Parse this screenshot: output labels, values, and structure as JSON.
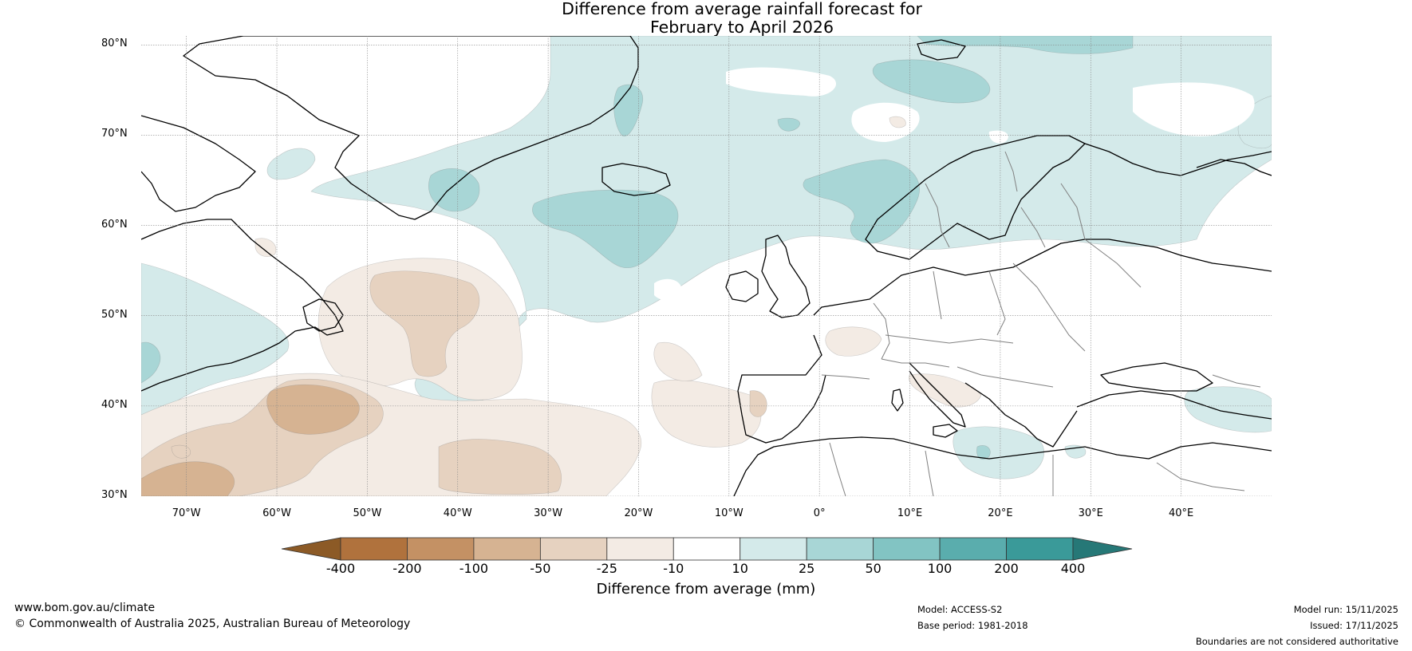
{
  "title": {
    "line1": "Difference from average rainfall forecast for",
    "line2": "February to April 2026"
  },
  "map": {
    "lon_min": -75,
    "lon_max": 50,
    "lat_min": 30,
    "lat_max": 81,
    "lat_ticks": [
      {
        "value": 80,
        "label": "80°N"
      },
      {
        "value": 70,
        "label": "70°N"
      },
      {
        "value": 60,
        "label": "60°N"
      },
      {
        "value": 50,
        "label": "50°N"
      },
      {
        "value": 40,
        "label": "40°N"
      },
      {
        "value": 30,
        "label": "30°N"
      }
    ],
    "lon_ticks": [
      {
        "value": -70,
        "label": "70°W"
      },
      {
        "value": -60,
        "label": "60°W"
      },
      {
        "value": -50,
        "label": "50°W"
      },
      {
        "value": -40,
        "label": "40°W"
      },
      {
        "value": -30,
        "label": "30°W"
      },
      {
        "value": -20,
        "label": "20°W"
      },
      {
        "value": -10,
        "label": "10°W"
      },
      {
        "value": 0,
        "label": "0°"
      },
      {
        "value": 10,
        "label": "10°E"
      },
      {
        "value": 20,
        "label": "20°E"
      },
      {
        "value": 30,
        "label": "30°E"
      },
      {
        "value": 40,
        "label": "40°E"
      }
    ]
  },
  "colorbar": {
    "title": "Difference from average (mm)",
    "labels": [
      "-400",
      "-200",
      "-100",
      "-50",
      "-25",
      "-10",
      "10",
      "25",
      "50",
      "100",
      "200",
      "400"
    ],
    "colors": {
      "extend_low": "#8c5a26",
      "bins": [
        "#b0723d",
        "#c49164",
        "#d6b392",
        "#e6d2c0",
        "#f3ebe4",
        "#ffffff",
        "#d4eaea",
        "#a8d6d6",
        "#82c4c3",
        "#5aadad",
        "#3a9a99"
      ],
      "extend_high": "#267877"
    }
  },
  "palette": {
    "brown_1": "#f3ebe4",
    "brown_2": "#e6d2c0",
    "brown_3": "#d6b392",
    "brown_4": "#c49164",
    "teal_1": "#d4eaea",
    "teal_2": "#a8d6d6",
    "teal_3": "#82c4c3",
    "coast": "#000000",
    "border": "#808080",
    "grid": "#888888"
  },
  "footer": {
    "website": "www.bom.gov.au/climate",
    "copyright": "© Commonwealth of Australia 2025, Australian Bureau of Meteorology",
    "model": "Model: ACCESS-S2",
    "base_period": "Base period: 1981-2018",
    "model_run": "Model run: 15/11/2025",
    "issued": "Issued: 17/11/2025",
    "disclaimer": "Boundaries are not considered authoritative"
  }
}
